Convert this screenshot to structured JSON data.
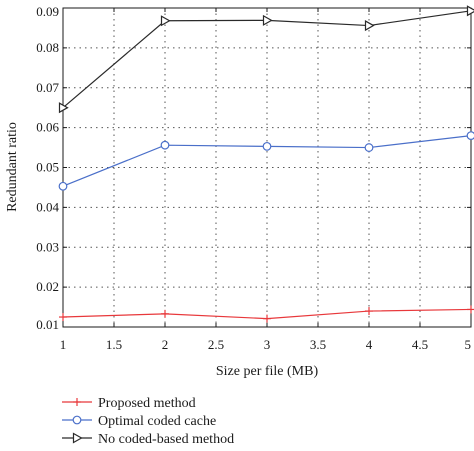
{
  "chart_data": {
    "type": "line",
    "xlabel": "Size per file (MB)",
    "ylabel": "Redundant ratio",
    "xlim": [
      1,
      5
    ],
    "ylim": [
      0.01,
      0.09
    ],
    "xticks": [
      1,
      1.5,
      2,
      2.5,
      3,
      3.5,
      4,
      4.5,
      5
    ],
    "yticks": [
      0.01,
      0.02,
      0.03,
      0.04,
      0.05,
      0.06,
      0.07,
      0.08,
      0.09
    ],
    "grid": true,
    "legend_position": "below",
    "x": [
      1,
      2,
      3,
      4,
      5
    ],
    "series": [
      {
        "name": "Proposed method",
        "color": "#e8383b",
        "marker": "plus",
        "values": [
          0.0125,
          0.0133,
          0.0121,
          0.014,
          0.0144
        ]
      },
      {
        "name": "Optimal coded cache",
        "color": "#4a6fc9",
        "marker": "circle",
        "values": [
          0.0453,
          0.0556,
          0.0553,
          0.055,
          0.058
        ]
      },
      {
        "name": "No coded-based method",
        "color": "#2a2a2a",
        "marker": "triangle-right",
        "values": [
          0.065,
          0.0868,
          0.0869,
          0.0856,
          0.0893
        ]
      }
    ]
  }
}
